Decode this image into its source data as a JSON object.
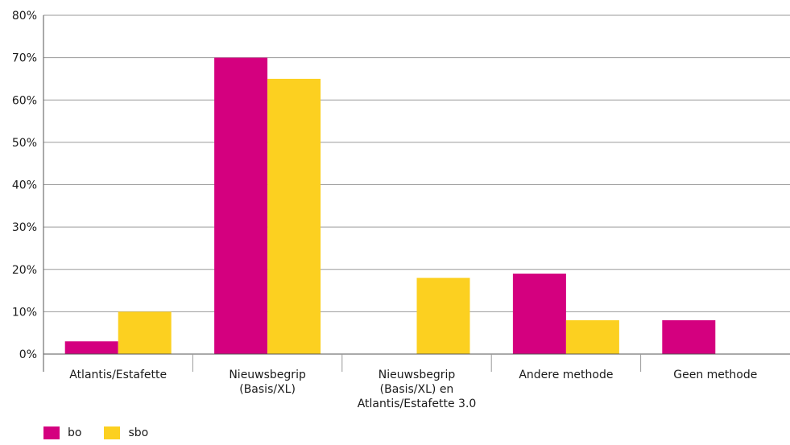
{
  "colors": {
    "bo": "#d4007f",
    "sbo": "#fcd020",
    "grid": "#9a9a9a",
    "axis": "#555555"
  },
  "chart_data": {
    "type": "bar",
    "title": "",
    "xlabel": "",
    "ylabel": "",
    "ylim": [
      0,
      80
    ],
    "yticks": [
      "0%",
      "10%",
      "20%",
      "30%",
      "40%",
      "50%",
      "60%",
      "70%",
      "80%"
    ],
    "grid": true,
    "legend_position": "bottom-left",
    "categories": [
      [
        "Atlantis/Estafette"
      ],
      [
        "Nieuwsbegrip",
        "(Basis/XL)"
      ],
      [
        "Nieuwsbegrip",
        "(Basis/XL) en",
        "Atlantis/Estafette 3.0"
      ],
      [
        "Andere methode"
      ],
      [
        "Geen methode"
      ]
    ],
    "series": [
      {
        "name": "bo",
        "values": [
          3,
          70,
          0,
          19,
          8
        ]
      },
      {
        "name": "sbo",
        "values": [
          10,
          65,
          18,
          8,
          0
        ]
      }
    ]
  }
}
